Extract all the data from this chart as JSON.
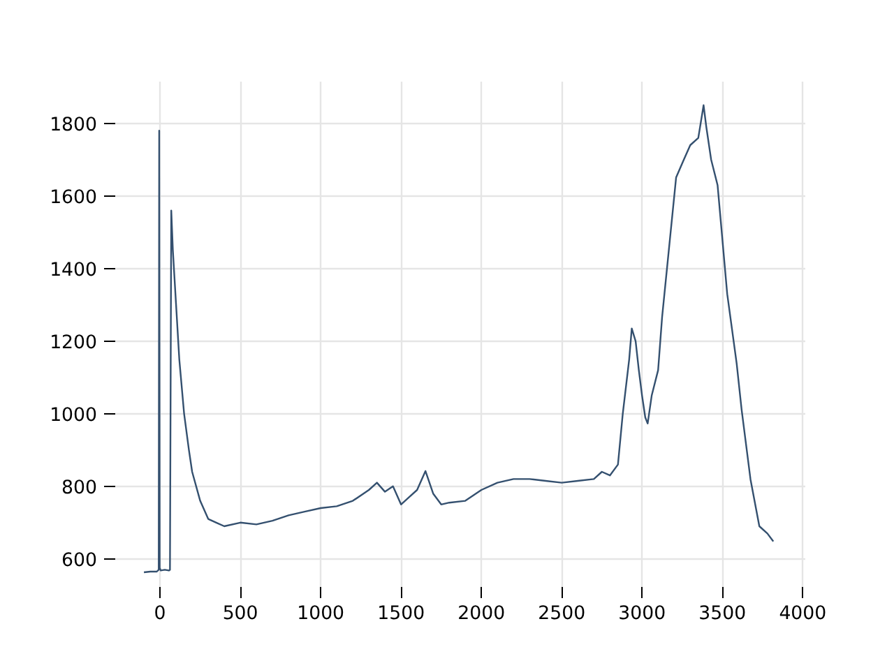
{
  "chart_data": {
    "type": "line",
    "color": "#34506f",
    "grid": true,
    "xlim": [
      -296,
      4016
    ],
    "ylim": [
      515,
      1915
    ],
    "xticks": [
      0,
      500,
      1000,
      1500,
      2000,
      2500,
      3000,
      3500,
      4000
    ],
    "yticks": [
      600,
      800,
      1000,
      1200,
      1400,
      1600,
      1800
    ],
    "x": [
      -100,
      -60,
      -20,
      -8,
      -5,
      -2,
      5,
      30,
      55,
      62,
      70,
      80,
      100,
      120,
      150,
      180,
      200,
      250,
      300,
      350,
      400,
      500,
      600,
      700,
      800,
      900,
      1000,
      1100,
      1200,
      1300,
      1350,
      1400,
      1450,
      1500,
      1550,
      1600,
      1652,
      1700,
      1750,
      1800,
      1900,
      2000,
      2100,
      2200,
      2300,
      2400,
      2500,
      2600,
      2700,
      2750,
      2800,
      2850,
      2880,
      2920,
      2936,
      2960,
      2980,
      3000,
      3020,
      3035,
      3060,
      3100,
      3125,
      3183,
      3212,
      3260,
      3300,
      3350,
      3383,
      3400,
      3430,
      3470,
      3530,
      3589,
      3620,
      3675,
      3730,
      3780,
      3817
    ],
    "values": [
      563,
      565,
      565,
      570,
      1780,
      575,
      568,
      570,
      568,
      570,
      1560,
      1450,
      1300,
      1150,
      1000,
      900,
      840,
      760,
      710,
      700,
      690,
      700,
      695,
      705,
      720,
      730,
      740,
      745,
      760,
      790,
      810,
      785,
      800,
      750,
      770,
      790,
      842,
      780,
      750,
      755,
      760,
      790,
      810,
      820,
      820,
      815,
      810,
      815,
      820,
      840,
      830,
      860,
      1000,
      1150,
      1235,
      1200,
      1120,
      1050,
      990,
      973,
      1050,
      1120,
      1267,
      1523,
      1651,
      1700,
      1740,
      1760,
      1850,
      1790,
      1700,
      1630,
      1330,
      1138,
      1010,
      819,
      690,
      670,
      648
    ]
  }
}
